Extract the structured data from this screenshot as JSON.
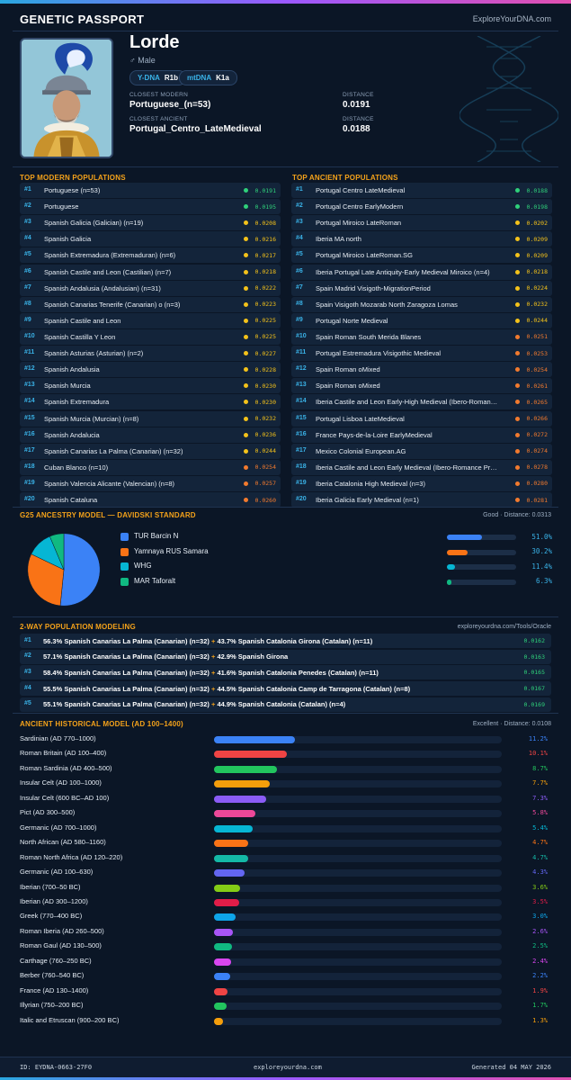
{
  "header": {
    "title": "GENETIC PASSPORT",
    "site": "ExploreYourDNA.com"
  },
  "profile": {
    "name": "Lorde",
    "sex": "♂ Male",
    "ydna_label": "Y-DNA",
    "ydna": "R1b",
    "mtdna_label": "mtDNA",
    "mtdna": "K1a",
    "closest_modern_label": "CLOSEST MODERN",
    "closest_modern": "Portuguese_(n=53)",
    "distance_label": "DISTANCE",
    "modern_distance": "0.0191",
    "closest_ancient_label": "CLOSEST ANCIENT",
    "closest_ancient": "Portugal_Centro_LateMedieval",
    "ancient_distance": "0.0188"
  },
  "modern": {
    "title": "TOP MODERN POPULATIONS",
    "items": [
      {
        "n": "#1",
        "name": "Portuguese (n=53)",
        "d": "0.0191",
        "c": "#2fd07a"
      },
      {
        "n": "#2",
        "name": "Portuguese",
        "d": "0.0195",
        "c": "#2fd07a"
      },
      {
        "n": "#3",
        "name": "Spanish Galicia (Galician) (n=19)",
        "d": "0.0208",
        "c": "#f4c21a"
      },
      {
        "n": "#4",
        "name": "Spanish Galicia",
        "d": "0.0216",
        "c": "#f4c21a"
      },
      {
        "n": "#5",
        "name": "Spanish Extremadura (Extremaduran) (n=6)",
        "d": "0.0217",
        "c": "#f4c21a"
      },
      {
        "n": "#6",
        "name": "Spanish Castile and Leon (Castilian) (n=7)",
        "d": "0.0218",
        "c": "#f4c21a"
      },
      {
        "n": "#7",
        "name": "Spanish Andalusia (Andalusian) (n=31)",
        "d": "0.0222",
        "c": "#f4c21a"
      },
      {
        "n": "#8",
        "name": "Spanish Canarias Tenerife (Canarian) o (n=3)",
        "d": "0.0223",
        "c": "#f4c21a"
      },
      {
        "n": "#9",
        "name": "Spanish Castile and Leon",
        "d": "0.0225",
        "c": "#f4c21a"
      },
      {
        "n": "#10",
        "name": "Spanish Castilla Y Leon",
        "d": "0.0225",
        "c": "#f4c21a"
      },
      {
        "n": "#11",
        "name": "Spanish Asturias (Asturian) (n=2)",
        "d": "0.0227",
        "c": "#f4c21a"
      },
      {
        "n": "#12",
        "name": "Spanish Andalusia",
        "d": "0.0228",
        "c": "#f4c21a"
      },
      {
        "n": "#13",
        "name": "Spanish Murcia",
        "d": "0.0230",
        "c": "#f4c21a"
      },
      {
        "n": "#14",
        "name": "Spanish Extremadura",
        "d": "0.0230",
        "c": "#f4c21a"
      },
      {
        "n": "#15",
        "name": "Spanish Murcia (Murcian) (n=8)",
        "d": "0.0232",
        "c": "#f4c21a"
      },
      {
        "n": "#16",
        "name": "Spanish Andalucia",
        "d": "0.0236",
        "c": "#f4c21a"
      },
      {
        "n": "#17",
        "name": "Spanish Canarias La Palma (Canarian) (n=32)",
        "d": "0.0244",
        "c": "#f4c21a"
      },
      {
        "n": "#18",
        "name": "Cuban Blanco (n=10)",
        "d": "0.0254",
        "c": "#f27a2e"
      },
      {
        "n": "#19",
        "name": "Spanish Valencia Alicante (Valencian) (n=8)",
        "d": "0.0257",
        "c": "#f27a2e"
      },
      {
        "n": "#20",
        "name": "Spanish Cataluna",
        "d": "0.0260",
        "c": "#f27a2e"
      }
    ]
  },
  "ancient": {
    "title": "TOP ANCIENT POPULATIONS",
    "items": [
      {
        "n": "#1",
        "name": "Portugal Centro LateMedieval",
        "d": "0.0188",
        "c": "#2fd07a"
      },
      {
        "n": "#2",
        "name": "Portugal Centro EarlyModern",
        "d": "0.0198",
        "c": "#2fd07a"
      },
      {
        "n": "#3",
        "name": "Portugal Miroico LateRoman",
        "d": "0.0202",
        "c": "#f4c21a"
      },
      {
        "n": "#4",
        "name": "Iberia MA north",
        "d": "0.0209",
        "c": "#f4c21a"
      },
      {
        "n": "#5",
        "name": "Portugal Miroico LateRoman.SG",
        "d": "0.0209",
        "c": "#f4c21a"
      },
      {
        "n": "#6",
        "name": "Iberia Portugal Late Antiquity-Early Medieval Miroico (n=4)",
        "d": "0.0218",
        "c": "#f4c21a"
      },
      {
        "n": "#7",
        "name": "Spain Madrid Visigoth-MigrationPeriod",
        "d": "0.0224",
        "c": "#f4c21a"
      },
      {
        "n": "#8",
        "name": "Spain Visigoth Mozarab North Zaragoza Lomas",
        "d": "0.0232",
        "c": "#f4c21a"
      },
      {
        "n": "#9",
        "name": "Portugal Norte Medieval",
        "d": "0.0244",
        "c": "#f4c21a"
      },
      {
        "n": "#10",
        "name": "Spain Roman South Merida Blanes",
        "d": "0.0251",
        "c": "#f27a2e"
      },
      {
        "n": "#11",
        "name": "Portugal Estremadura Visigothic Medieval",
        "d": "0.0253",
        "c": "#f27a2e"
      },
      {
        "n": "#12",
        "name": "Spain Roman oMixed",
        "d": "0.0254",
        "c": "#f27a2e"
      },
      {
        "n": "#13",
        "name": "Spain Roman oMixed",
        "d": "0.0261",
        "c": "#f27a2e"
      },
      {
        "n": "#14",
        "name": "Iberia Castile and Leon Early-High Medieval (Ibero-Roman…",
        "d": "0.0265",
        "c": "#f27a2e"
      },
      {
        "n": "#15",
        "name": "Portugal Lisboa LateMedieval",
        "d": "0.0266",
        "c": "#f27a2e"
      },
      {
        "n": "#16",
        "name": "France Pays-de-la-Loire EarlyMedieval",
        "d": "0.0272",
        "c": "#f27a2e"
      },
      {
        "n": "#17",
        "name": "Mexico Colonial European.AG",
        "d": "0.0274",
        "c": "#f27a2e"
      },
      {
        "n": "#18",
        "name": "Iberia Castile and Leon Early Medieval (Ibero-Romance Pr…",
        "d": "0.0278",
        "c": "#f27a2e"
      },
      {
        "n": "#19",
        "name": "Iberia Catalonia High Medieval (n=3)",
        "d": "0.0280",
        "c": "#f27a2e"
      },
      {
        "n": "#20",
        "name": "Iberia Galicia Early Medieval (n=1)",
        "d": "0.0281",
        "c": "#f27a2e"
      }
    ]
  },
  "g25": {
    "title": "G25 ANCESTRY MODEL — DAVIDSKI STANDARD",
    "fit": "Good · Distance: 0.0313"
  },
  "chart_data": {
    "type": "pie",
    "categories": [
      "TUR Barcin N",
      "Yamnaya RUS Samara",
      "WHG",
      "MAR Taforalt"
    ],
    "values": [
      51.0,
      30.2,
      11.4,
      6.3
    ],
    "labels": [
      "51.0%",
      "30.2%",
      "11.4%",
      "6.3%"
    ],
    "colors": [
      "#3b82f6",
      "#f97316",
      "#06b6d4",
      "#10b981"
    ],
    "ylim": [
      0,
      100
    ]
  },
  "twoway": {
    "title": "2-WAY POPULATION MODELING",
    "source": "exploreyourdna.com/Tools/Oracle",
    "items": [
      {
        "n": "#1",
        "a": "56.3% Spanish Canarias La Palma (Canarian) (n=32)",
        "b": "43.7% Spanish Catalonia Girona (Catalan) (n=11)",
        "d": "0.0162"
      },
      {
        "n": "#2",
        "a": "57.1% Spanish Canarias La Palma (Canarian) (n=32)",
        "b": "42.9% Spanish Girona",
        "d": "0.0163"
      },
      {
        "n": "#3",
        "a": "58.4% Spanish Canarias La Palma (Canarian) (n=32)",
        "b": "41.6% Spanish Catalonia Penedes (Catalan) (n=11)",
        "d": "0.0165"
      },
      {
        "n": "#4",
        "a": "55.5% Spanish Canarias La Palma (Canarian) (n=32)",
        "b": "44.5% Spanish Catalonia Camp de Tarragona (Catalan) (n=8)",
        "d": "0.0167"
      },
      {
        "n": "#5",
        "a": "55.1% Spanish Canarias La Palma (Canarian) (n=32)",
        "b": "44.9% Spanish Catalonia (Catalan) (n=4)",
        "d": "0.0169"
      }
    ]
  },
  "historical": {
    "title": "ANCIENT HISTORICAL MODEL (AD 100–1400)",
    "fit": "Excellent · Distance: 0.0108",
    "max": 40,
    "items": [
      {
        "name": "Sardinian (AD 770–1000)",
        "v": 11.2,
        "label": "11.2%",
        "c": "#3b82f6"
      },
      {
        "name": "Roman Britain (AD 100–400)",
        "v": 10.1,
        "label": "10.1%",
        "c": "#ef4444"
      },
      {
        "name": "Roman Sardinia (AD 400–500)",
        "v": 8.7,
        "label": "8.7%",
        "c": "#22c55e"
      },
      {
        "name": "Insular Celt (AD 100–1000)",
        "v": 7.7,
        "label": "7.7%",
        "c": "#f59e0b"
      },
      {
        "name": "Insular Celt (600 BC–AD 100)",
        "v": 7.3,
        "label": "7.3%",
        "c": "#8b5cf6"
      },
      {
        "name": "Pict (AD 300–500)",
        "v": 5.8,
        "label": "5.8%",
        "c": "#ec4899"
      },
      {
        "name": "Germanic (AD 700–1000)",
        "v": 5.4,
        "label": "5.4%",
        "c": "#06b6d4"
      },
      {
        "name": "North African (AD 580–1160)",
        "v": 4.7,
        "label": "4.7%",
        "c": "#f97316"
      },
      {
        "name": "Roman North Africa (AD 120–220)",
        "v": 4.7,
        "label": "4.7%",
        "c": "#14b8a6"
      },
      {
        "name": "Germanic (AD 100–630)",
        "v": 4.3,
        "label": "4.3%",
        "c": "#6366f1"
      },
      {
        "name": "Iberian (700–50 BC)",
        "v": 3.6,
        "label": "3.6%",
        "c": "#84cc16"
      },
      {
        "name": "Iberian (AD 300–1200)",
        "v": 3.5,
        "label": "3.5%",
        "c": "#e11d48"
      },
      {
        "name": "Greek (770–400 BC)",
        "v": 3.0,
        "label": "3.0%",
        "c": "#0ea5e9"
      },
      {
        "name": "Roman Iberia (AD 260–500)",
        "v": 2.6,
        "label": "2.6%",
        "c": "#a855f7"
      },
      {
        "name": "Roman Gaul (AD 130–500)",
        "v": 2.5,
        "label": "2.5%",
        "c": "#10b981"
      },
      {
        "name": "Carthage (760–250 BC)",
        "v": 2.4,
        "label": "2.4%",
        "c": "#d946ef"
      },
      {
        "name": "Berber (760–540 BC)",
        "v": 2.2,
        "label": "2.2%",
        "c": "#3b82f6"
      },
      {
        "name": "France (AD 130–1400)",
        "v": 1.9,
        "label": "1.9%",
        "c": "#ef4444"
      },
      {
        "name": "Illyrian (750–200 BC)",
        "v": 1.7,
        "label": "1.7%",
        "c": "#22c55e"
      },
      {
        "name": "Italic and Etruscan (900–200 BC)",
        "v": 1.3,
        "label": "1.3%",
        "c": "#f59e0b"
      }
    ]
  },
  "footer": {
    "id": "ID: EYDNA-0663-27F0",
    "site": "exploreyourdna.com",
    "generated": "Generated 04 MAY 2026"
  }
}
